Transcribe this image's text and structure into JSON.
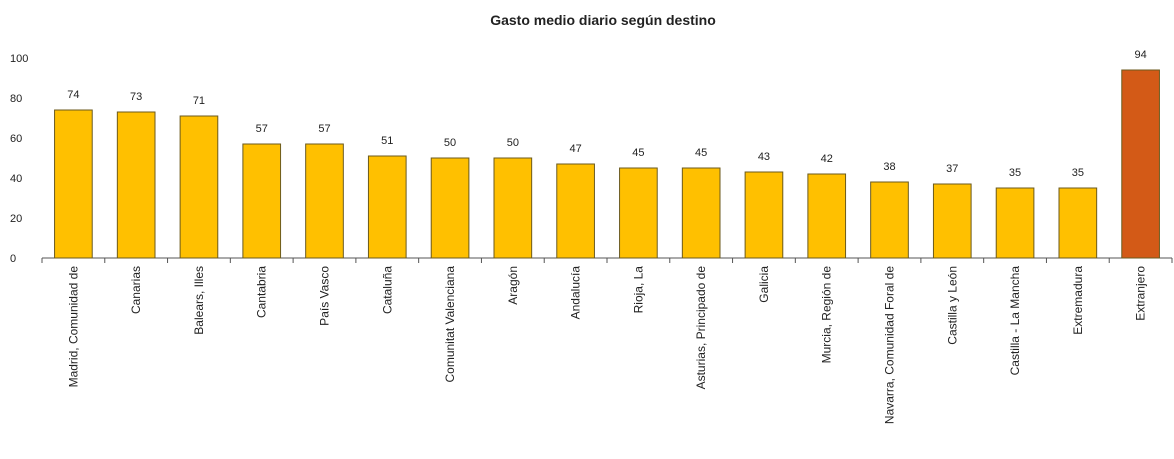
{
  "chart_data": {
    "type": "bar",
    "title": "Gasto medio diario según destino",
    "xlabel": "",
    "ylabel": "",
    "ylim": [
      0,
      100
    ],
    "yticks": [
      0,
      20,
      40,
      60,
      80,
      100
    ],
    "grid": false,
    "legend": "none",
    "categories": [
      "Madrid, Comunidad de",
      "Canarias",
      "Balears, Illes",
      "Cantabria",
      "País Vasco",
      "Cataluña",
      "Comunitat Valenciana",
      "Aragón",
      "Andalucía",
      "Rioja, La",
      "Asturias, Principado de",
      "Galicia",
      "Murcia, Región de",
      "Navarra, Comunidad Foral de",
      "Castilla y León",
      "Castilla - La Mancha",
      "Extremadura",
      "Extranjero"
    ],
    "values": [
      74,
      73,
      71,
      57,
      57,
      51,
      50,
      50,
      47,
      45,
      45,
      43,
      42,
      38,
      37,
      35,
      35,
      94
    ],
    "colors": {
      "default_bar": "#ffc000",
      "highlight_bar": "#d35a17",
      "highlight_category": "Extranjero"
    }
  }
}
